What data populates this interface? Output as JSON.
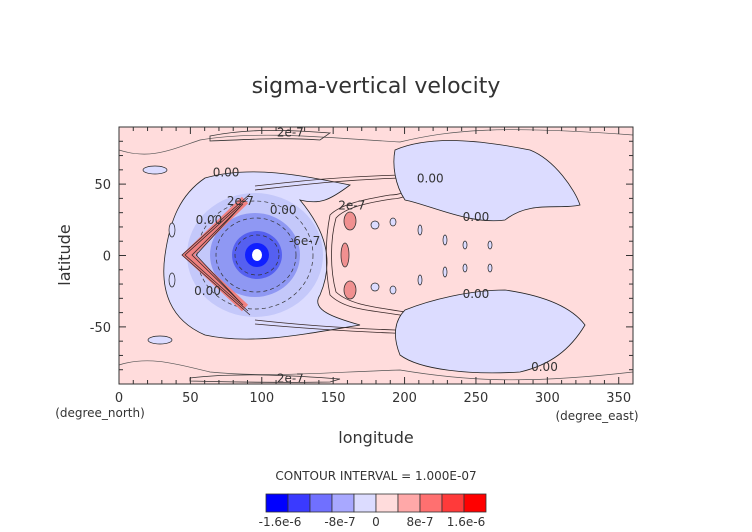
{
  "chart_data": {
    "type": "heatmap",
    "title": "sigma-vertical velocity",
    "xlabel": "longitude",
    "ylabel": "latitude",
    "x_unit": "(degree_east)",
    "y_unit": "(degree_north)",
    "xlim": [
      0,
      360
    ],
    "ylim": [
      -90,
      90
    ],
    "xticks": [
      0,
      50,
      100,
      150,
      200,
      250,
      300,
      350
    ],
    "yticks": [
      -50,
      0,
      50
    ],
    "contour_interval_text": "CONTOUR INTERVAL = 1.000E-07",
    "colorbar": {
      "tick_labels": [
        "-1.6e-6",
        "-8e-7",
        "0",
        "8e-7",
        "1.6e-6"
      ],
      "tick_values": [
        -1.6e-06,
        -8e-07,
        0,
        8e-07,
        1.6e-06
      ],
      "range": [
        -2e-06,
        2e-06
      ],
      "colors": [
        "#0000ff",
        "#3a3aff",
        "#7070ff",
        "#a8a8ff",
        "#dcdcff",
        "#ffdcdc",
        "#ffa8a8",
        "#ff7070",
        "#ff3a3a",
        "#ff0000"
      ]
    },
    "contour_labels": [
      {
        "text": "2e-7",
        "lon": 120,
        "lat": 86
      },
      {
        "text": "2e-7",
        "lon": 120,
        "lat": -86
      },
      {
        "text": "0.00",
        "lon": 75,
        "lat": 58
      },
      {
        "text": "2e-7",
        "lon": 85,
        "lat": 38
      },
      {
        "text": "0.00",
        "lon": 115,
        "lat": 32
      },
      {
        "text": "2e-7",
        "lon": 163,
        "lat": 35
      },
      {
        "text": "-6e-7",
        "lon": 130,
        "lat": 10
      },
      {
        "text": "0.00",
        "lon": 63,
        "lat": 25
      },
      {
        "text": "0.00",
        "lon": 62,
        "lat": -25
      },
      {
        "text": "0.00",
        "lon": 218,
        "lat": 54
      },
      {
        "text": "0.00",
        "lon": 250,
        "lat": 27
      },
      {
        "text": "0.00",
        "lon": 250,
        "lat": -27
      },
      {
        "text": "0.00",
        "lon": 298,
        "lat": -78
      }
    ],
    "features": [
      {
        "kind": "min",
        "lon": 97,
        "lat": 0,
        "value_sign": "negative"
      },
      {
        "kind": "max_arc",
        "lon": 48,
        "lat": 0,
        "value_sign": "positive"
      }
    ],
    "colors": {
      "background": "#ffdcdc",
      "accent_negative": "#0000ff",
      "accent_positive": "#ff0000"
    }
  }
}
